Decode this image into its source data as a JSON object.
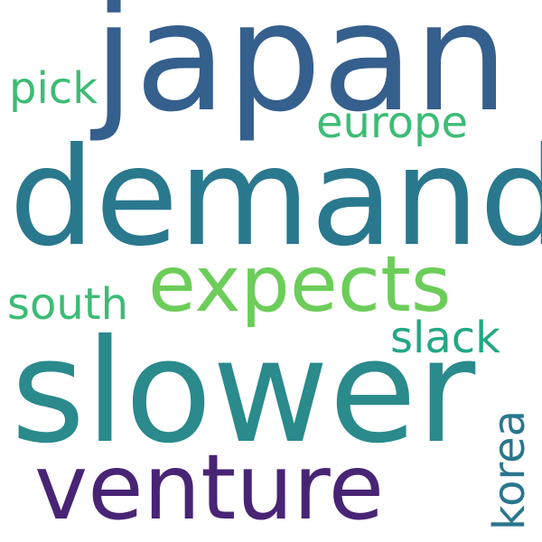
{
  "words": {
    "japan": {
      "text": "japan",
      "color": "#355f8d"
    },
    "demand": {
      "text": "demand",
      "color": "#2a788e"
    },
    "slower": {
      "text": "slower",
      "color": "#2a8a8c"
    },
    "venture": {
      "text": "venture",
      "color": "#482475"
    },
    "expects": {
      "text": "expects",
      "color": "#6ccd5a"
    },
    "pick": {
      "text": "pick",
      "color": "#3dbc74"
    },
    "europe": {
      "text": "europe",
      "color": "#3cbc75"
    },
    "south": {
      "text": "south",
      "color": "#3cbb75"
    },
    "slack": {
      "text": "slack",
      "color": "#22a784"
    },
    "korea": {
      "text": "korea",
      "color": "#2a768e"
    }
  }
}
